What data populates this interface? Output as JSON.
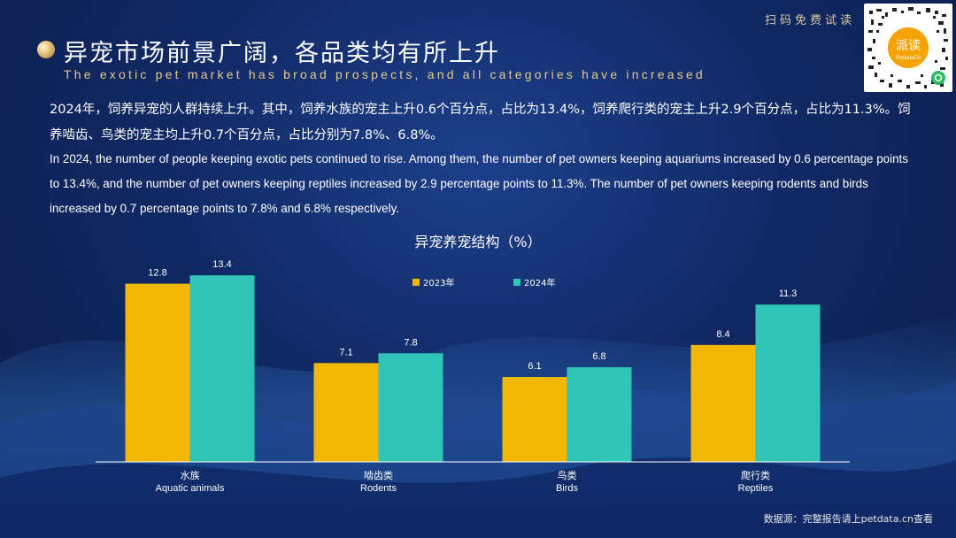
{
  "header": {
    "scan_label": "扫码免费试读",
    "title_cn": "异宠市场前景广阔，各品类均有所上升",
    "title_en": "The exotic pet market has broad prospects, and all categories have increased"
  },
  "body": {
    "paragraph_cn": "2024年，饲养异宠的人群持续上升。其中，饲养水族的宠主上升0.6个百分点，占比为13.4%，饲养爬行类的宠主上升2.9个百分点，占比为11.3%。饲养啮齿、鸟类的宠主均上升0.7个百分点，占比分别为7.8%、6.8%。",
    "paragraph_en": "In 2024, the number of people keeping exotic pets continued to rise. Among them, the number of pet owners keeping aquariums increased by 0.6 percentage points to 13.4%, and the number of pet owners keeping reptiles increased by 2.9 percentage points to 11.3%. The number of pet owners keeping rodents and birds increased by 0.7 percentage points to 7.8% and 6.8% respectively."
  },
  "qr": {
    "logo_text": "派读",
    "logo_sub": "PetdataCn"
  },
  "colors": {
    "series_2023": "#f2b705",
    "series_2024": "#2ec4b6",
    "axis": "#ffffff"
  },
  "chart_data": {
    "type": "bar",
    "title": "异宠养宠结构（%）",
    "categories": [
      "水族",
      "啮齿类",
      "鸟类",
      "爬行类"
    ],
    "categories_en": [
      "Aquatic animals",
      "Rodents",
      "Birds",
      "Reptiles"
    ],
    "series": [
      {
        "name": "2023年",
        "values": [
          12.8,
          7.1,
          6.1,
          8.4
        ]
      },
      {
        "name": "2024年",
        "values": [
          13.4,
          7.8,
          6.8,
          11.3
        ]
      }
    ],
    "ylim": [
      0,
      15
    ],
    "legend": "top-center",
    "grid": false
  },
  "footer": {
    "source": "数据源：完整报告请上petdata.cn查看"
  }
}
